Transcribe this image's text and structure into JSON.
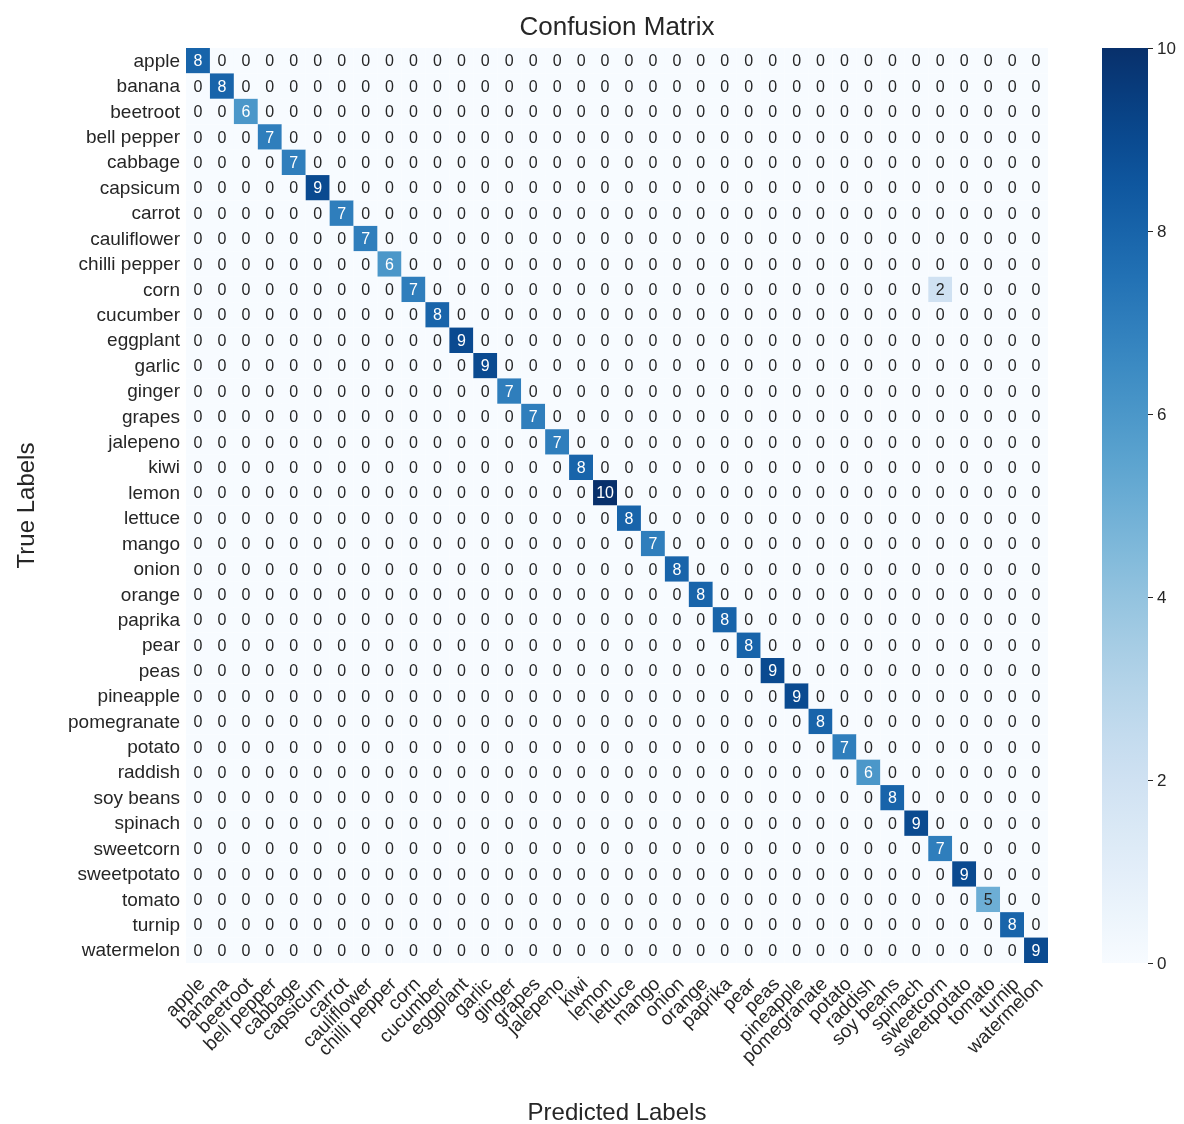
{
  "chart_data": {
    "type": "heatmap",
    "title": "Confusion Matrix",
    "xlabel": "Predicted Labels",
    "ylabel": "True Labels",
    "categories": [
      "apple",
      "banana",
      "beetroot",
      "bell pepper",
      "cabbage",
      "capsicum",
      "carrot",
      "cauliflower",
      "chilli pepper",
      "corn",
      "cucumber",
      "eggplant",
      "garlic",
      "ginger",
      "grapes",
      "jalepeno",
      "kiwi",
      "lemon",
      "lettuce",
      "mango",
      "onion",
      "orange",
      "paprika",
      "pear",
      "peas",
      "pineapple",
      "pomegranate",
      "potato",
      "raddish",
      "soy beans",
      "spinach",
      "sweetcorn",
      "sweetpotato",
      "tomato",
      "turnip",
      "watermelon"
    ],
    "y_categories": [
      "apple",
      "banana",
      "beetroot",
      "bell pepper",
      "cabbage",
      "capsicum",
      "carrot",
      "cauliflower",
      "chilli pepper",
      "corn",
      "cucumber",
      "eggplant",
      "garlic",
      "ginger",
      "grapes",
      "jalepeno",
      "kiwi",
      "lemon",
      "lettuce",
      "mango",
      "onion",
      "orange",
      "paprika",
      "pear",
      "peas",
      "pineapple",
      "pomegranate",
      "potato",
      "raddish",
      "soy beans",
      "spinach",
      "sweetcorn",
      "sweetpotato",
      "tomato",
      "turnip",
      "watermelon"
    ],
    "cells": [
      [
        8,
        0,
        0,
        0,
        0,
        0,
        0,
        0,
        0,
        0,
        0,
        0,
        0,
        0,
        0,
        0,
        0,
        0,
        0,
        0,
        0,
        0,
        0,
        0,
        0,
        0,
        0,
        0,
        0,
        0,
        0,
        0,
        0,
        0,
        0,
        0
      ],
      [
        0,
        8,
        0,
        0,
        0,
        0,
        0,
        0,
        0,
        0,
        0,
        0,
        0,
        0,
        0,
        0,
        0,
        0,
        0,
        0,
        0,
        0,
        0,
        0,
        0,
        0,
        0,
        0,
        0,
        0,
        0,
        0,
        0,
        0,
        0,
        0
      ],
      [
        0,
        0,
        6,
        0,
        0,
        0,
        0,
        0,
        0,
        0,
        0,
        0,
        0,
        0,
        0,
        0,
        0,
        0,
        0,
        0,
        0,
        0,
        0,
        0,
        0,
        0,
        0,
        0,
        0,
        0,
        0,
        0,
        0,
        0,
        0,
        0
      ],
      [
        0,
        0,
        0,
        7,
        0,
        0,
        0,
        0,
        0,
        0,
        0,
        0,
        0,
        0,
        0,
        0,
        0,
        0,
        0,
        0,
        0,
        0,
        0,
        0,
        0,
        0,
        0,
        0,
        0,
        0,
        0,
        0,
        0,
        0,
        0,
        0
      ],
      [
        0,
        0,
        0,
        0,
        7,
        0,
        0,
        0,
        0,
        0,
        0,
        0,
        0,
        0,
        0,
        0,
        0,
        0,
        0,
        0,
        0,
        0,
        0,
        0,
        0,
        0,
        0,
        0,
        0,
        0,
        0,
        0,
        0,
        0,
        0,
        0
      ],
      [
        0,
        0,
        0,
        0,
        0,
        9,
        0,
        0,
        0,
        0,
        0,
        0,
        0,
        0,
        0,
        0,
        0,
        0,
        0,
        0,
        0,
        0,
        0,
        0,
        0,
        0,
        0,
        0,
        0,
        0,
        0,
        0,
        0,
        0,
        0,
        0
      ],
      [
        0,
        0,
        0,
        0,
        0,
        0,
        7,
        0,
        0,
        0,
        0,
        0,
        0,
        0,
        0,
        0,
        0,
        0,
        0,
        0,
        0,
        0,
        0,
        0,
        0,
        0,
        0,
        0,
        0,
        0,
        0,
        0,
        0,
        0,
        0,
        0
      ],
      [
        0,
        0,
        0,
        0,
        0,
        0,
        0,
        7,
        0,
        0,
        0,
        0,
        0,
        0,
        0,
        0,
        0,
        0,
        0,
        0,
        0,
        0,
        0,
        0,
        0,
        0,
        0,
        0,
        0,
        0,
        0,
        0,
        0,
        0,
        0,
        0
      ],
      [
        0,
        0,
        0,
        0,
        0,
        0,
        0,
        0,
        6,
        0,
        0,
        0,
        0,
        0,
        0,
        0,
        0,
        0,
        0,
        0,
        0,
        0,
        0,
        0,
        0,
        0,
        0,
        0,
        0,
        0,
        0,
        0,
        0,
        0,
        0,
        0
      ],
      [
        0,
        0,
        0,
        0,
        0,
        0,
        0,
        0,
        0,
        7,
        0,
        0,
        0,
        0,
        0,
        0,
        0,
        0,
        0,
        0,
        0,
        0,
        0,
        0,
        0,
        0,
        0,
        0,
        0,
        0,
        0,
        2,
        0,
        0,
        0,
        0
      ],
      [
        0,
        0,
        0,
        0,
        0,
        0,
        0,
        0,
        0,
        0,
        8,
        0,
        0,
        0,
        0,
        0,
        0,
        0,
        0,
        0,
        0,
        0,
        0,
        0,
        0,
        0,
        0,
        0,
        0,
        0,
        0,
        0,
        0,
        0,
        0,
        0
      ],
      [
        0,
        0,
        0,
        0,
        0,
        0,
        0,
        0,
        0,
        0,
        0,
        9,
        0,
        0,
        0,
        0,
        0,
        0,
        0,
        0,
        0,
        0,
        0,
        0,
        0,
        0,
        0,
        0,
        0,
        0,
        0,
        0,
        0,
        0,
        0,
        0
      ],
      [
        0,
        0,
        0,
        0,
        0,
        0,
        0,
        0,
        0,
        0,
        0,
        0,
        9,
        0,
        0,
        0,
        0,
        0,
        0,
        0,
        0,
        0,
        0,
        0,
        0,
        0,
        0,
        0,
        0,
        0,
        0,
        0,
        0,
        0,
        0,
        0
      ],
      [
        0,
        0,
        0,
        0,
        0,
        0,
        0,
        0,
        0,
        0,
        0,
        0,
        0,
        7,
        0,
        0,
        0,
        0,
        0,
        0,
        0,
        0,
        0,
        0,
        0,
        0,
        0,
        0,
        0,
        0,
        0,
        0,
        0,
        0,
        0,
        0
      ],
      [
        0,
        0,
        0,
        0,
        0,
        0,
        0,
        0,
        0,
        0,
        0,
        0,
        0,
        0,
        7,
        0,
        0,
        0,
        0,
        0,
        0,
        0,
        0,
        0,
        0,
        0,
        0,
        0,
        0,
        0,
        0,
        0,
        0,
        0,
        0,
        0
      ],
      [
        0,
        0,
        0,
        0,
        0,
        0,
        0,
        0,
        0,
        0,
        0,
        0,
        0,
        0,
        0,
        7,
        0,
        0,
        0,
        0,
        0,
        0,
        0,
        0,
        0,
        0,
        0,
        0,
        0,
        0,
        0,
        0,
        0,
        0,
        0,
        0
      ],
      [
        0,
        0,
        0,
        0,
        0,
        0,
        0,
        0,
        0,
        0,
        0,
        0,
        0,
        0,
        0,
        0,
        8,
        0,
        0,
        0,
        0,
        0,
        0,
        0,
        0,
        0,
        0,
        0,
        0,
        0,
        0,
        0,
        0,
        0,
        0,
        0
      ],
      [
        0,
        0,
        0,
        0,
        0,
        0,
        0,
        0,
        0,
        0,
        0,
        0,
        0,
        0,
        0,
        0,
        0,
        10,
        0,
        0,
        0,
        0,
        0,
        0,
        0,
        0,
        0,
        0,
        0,
        0,
        0,
        0,
        0,
        0,
        0,
        0
      ],
      [
        0,
        0,
        0,
        0,
        0,
        0,
        0,
        0,
        0,
        0,
        0,
        0,
        0,
        0,
        0,
        0,
        0,
        0,
        8,
        0,
        0,
        0,
        0,
        0,
        0,
        0,
        0,
        0,
        0,
        0,
        0,
        0,
        0,
        0,
        0,
        0
      ],
      [
        0,
        0,
        0,
        0,
        0,
        0,
        0,
        0,
        0,
        0,
        0,
        0,
        0,
        0,
        0,
        0,
        0,
        0,
        0,
        7,
        0,
        0,
        0,
        0,
        0,
        0,
        0,
        0,
        0,
        0,
        0,
        0,
        0,
        0,
        0,
        0
      ],
      [
        0,
        0,
        0,
        0,
        0,
        0,
        0,
        0,
        0,
        0,
        0,
        0,
        0,
        0,
        0,
        0,
        0,
        0,
        0,
        0,
        8,
        0,
        0,
        0,
        0,
        0,
        0,
        0,
        0,
        0,
        0,
        0,
        0,
        0,
        0,
        0
      ],
      [
        0,
        0,
        0,
        0,
        0,
        0,
        0,
        0,
        0,
        0,
        0,
        0,
        0,
        0,
        0,
        0,
        0,
        0,
        0,
        0,
        0,
        8,
        0,
        0,
        0,
        0,
        0,
        0,
        0,
        0,
        0,
        0,
        0,
        0,
        0,
        0
      ],
      [
        0,
        0,
        0,
        0,
        0,
        0,
        0,
        0,
        0,
        0,
        0,
        0,
        0,
        0,
        0,
        0,
        0,
        0,
        0,
        0,
        0,
        0,
        8,
        0,
        0,
        0,
        0,
        0,
        0,
        0,
        0,
        0,
        0,
        0,
        0,
        0
      ],
      [
        0,
        0,
        0,
        0,
        0,
        0,
        0,
        0,
        0,
        0,
        0,
        0,
        0,
        0,
        0,
        0,
        0,
        0,
        0,
        0,
        0,
        0,
        0,
        8,
        0,
        0,
        0,
        0,
        0,
        0,
        0,
        0,
        0,
        0,
        0,
        0
      ],
      [
        0,
        0,
        0,
        0,
        0,
        0,
        0,
        0,
        0,
        0,
        0,
        0,
        0,
        0,
        0,
        0,
        0,
        0,
        0,
        0,
        0,
        0,
        0,
        0,
        9,
        0,
        0,
        0,
        0,
        0,
        0,
        0,
        0,
        0,
        0,
        0
      ],
      [
        0,
        0,
        0,
        0,
        0,
        0,
        0,
        0,
        0,
        0,
        0,
        0,
        0,
        0,
        0,
        0,
        0,
        0,
        0,
        0,
        0,
        0,
        0,
        0,
        0,
        9,
        0,
        0,
        0,
        0,
        0,
        0,
        0,
        0,
        0,
        0
      ],
      [
        0,
        0,
        0,
        0,
        0,
        0,
        0,
        0,
        0,
        0,
        0,
        0,
        0,
        0,
        0,
        0,
        0,
        0,
        0,
        0,
        0,
        0,
        0,
        0,
        0,
        0,
        8,
        0,
        0,
        0,
        0,
        0,
        0,
        0,
        0,
        0
      ],
      [
        0,
        0,
        0,
        0,
        0,
        0,
        0,
        0,
        0,
        0,
        0,
        0,
        0,
        0,
        0,
        0,
        0,
        0,
        0,
        0,
        0,
        0,
        0,
        0,
        0,
        0,
        0,
        7,
        0,
        0,
        0,
        0,
        0,
        0,
        0,
        0
      ],
      [
        0,
        0,
        0,
        0,
        0,
        0,
        0,
        0,
        0,
        0,
        0,
        0,
        0,
        0,
        0,
        0,
        0,
        0,
        0,
        0,
        0,
        0,
        0,
        0,
        0,
        0,
        0,
        0,
        6,
        0,
        0,
        0,
        0,
        0,
        0,
        0
      ],
      [
        0,
        0,
        0,
        0,
        0,
        0,
        0,
        0,
        0,
        0,
        0,
        0,
        0,
        0,
        0,
        0,
        0,
        0,
        0,
        0,
        0,
        0,
        0,
        0,
        0,
        0,
        0,
        0,
        0,
        8,
        0,
        0,
        0,
        0,
        0,
        0
      ],
      [
        0,
        0,
        0,
        0,
        0,
        0,
        0,
        0,
        0,
        0,
        0,
        0,
        0,
        0,
        0,
        0,
        0,
        0,
        0,
        0,
        0,
        0,
        0,
        0,
        0,
        0,
        0,
        0,
        0,
        0,
        9,
        0,
        0,
        0,
        0,
        0
      ],
      [
        0,
        0,
        0,
        0,
        0,
        0,
        0,
        0,
        0,
        0,
        0,
        0,
        0,
        0,
        0,
        0,
        0,
        0,
        0,
        0,
        0,
        0,
        0,
        0,
        0,
        0,
        0,
        0,
        0,
        0,
        0,
        7,
        0,
        0,
        0,
        0
      ],
      [
        0,
        0,
        0,
        0,
        0,
        0,
        0,
        0,
        0,
        0,
        0,
        0,
        0,
        0,
        0,
        0,
        0,
        0,
        0,
        0,
        0,
        0,
        0,
        0,
        0,
        0,
        0,
        0,
        0,
        0,
        0,
        0,
        9,
        0,
        0,
        0
      ],
      [
        0,
        0,
        0,
        0,
        0,
        0,
        0,
        0,
        0,
        0,
        0,
        0,
        0,
        0,
        0,
        0,
        0,
        0,
        0,
        0,
        0,
        0,
        0,
        0,
        0,
        0,
        0,
        0,
        0,
        0,
        0,
        0,
        0,
        5,
        0,
        0
      ],
      [
        0,
        0,
        0,
        0,
        0,
        0,
        0,
        0,
        0,
        0,
        0,
        0,
        0,
        0,
        0,
        0,
        0,
        0,
        0,
        0,
        0,
        0,
        0,
        0,
        0,
        0,
        0,
        0,
        0,
        0,
        0,
        0,
        0,
        0,
        8,
        0
      ],
      [
        0,
        0,
        0,
        0,
        0,
        0,
        0,
        0,
        0,
        0,
        0,
        0,
        0,
        0,
        0,
        0,
        0,
        0,
        0,
        0,
        0,
        0,
        0,
        0,
        0,
        0,
        0,
        0,
        0,
        0,
        0,
        0,
        0,
        0,
        0,
        9
      ]
    ],
    "clim": [
      0,
      10
    ],
    "cticks": [
      0,
      2,
      4,
      6,
      8,
      10
    ],
    "data_labels": true
  }
}
